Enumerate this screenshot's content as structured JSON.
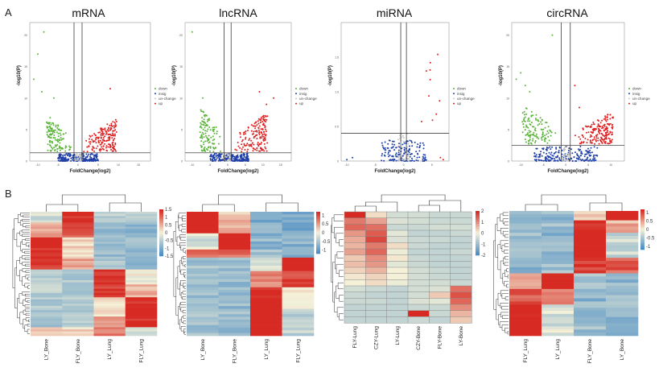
{
  "panel_labels": {
    "a": "A",
    "b": "B"
  },
  "colors": {
    "down": "#5bb43a",
    "insig": "#1f3fa8",
    "un_change": "#c9c9c9",
    "up": "#e02020",
    "hm_low": "#4a8cc4",
    "hm_mid": "#f4f1d8",
    "hm_high": "#d62a22"
  },
  "chart_data": [
    {
      "type": "scatter",
      "title": "mRNA",
      "xlabel": "FoldChange(log2)",
      "ylabel": "-log10(P)",
      "xticks": [
        "-10",
        "-5",
        "0",
        "5",
        "10",
        "15"
      ],
      "yticks": [
        "0",
        "5",
        "10",
        "15",
        "20"
      ],
      "xlim": [
        -12,
        18
      ],
      "ylim": [
        0,
        22
      ],
      "threshold_x": [
        -1,
        1
      ],
      "threshold_y": 1.3,
      "legend": [
        "down",
        "insig",
        "un-change",
        "up"
      ],
      "point_groups": [
        {
          "name": "down",
          "count": 130,
          "x": [
            -8,
            -1.2
          ],
          "y": [
            1.5,
            7.5
          ]
        },
        {
          "name": "up",
          "count": 170,
          "x": [
            1.2,
            10
          ],
          "y": [
            1.5,
            7
          ]
        },
        {
          "name": "insig",
          "count": 240,
          "x": [
            -5,
            5
          ],
          "y": [
            0,
            1.2
          ]
        },
        {
          "name": "un-change",
          "count": 30,
          "x": [
            -1,
            1
          ],
          "y": [
            0,
            1.3
          ]
        }
      ],
      "outliers": [
        [
          -8.5,
          20.5
        ],
        [
          -10,
          17
        ],
        [
          -11,
          13
        ],
        [
          -9,
          11
        ],
        [
          8,
          11.5
        ],
        [
          -6,
          10
        ]
      ]
    },
    {
      "type": "scatter",
      "title": "lncRNA",
      "xlabel": "FoldChange(log2)",
      "ylabel": "-log10(P)",
      "xticks": [
        "-10",
        "-5",
        "0",
        "5",
        "10",
        "15"
      ],
      "yticks": [
        "0",
        "5",
        "10",
        "15",
        "20"
      ],
      "xlim": [
        -12,
        18
      ],
      "ylim": [
        0,
        22
      ],
      "threshold_x": [
        -1,
        1
      ],
      "threshold_y": 1.3,
      "legend": [
        "down",
        "insig",
        "un-change",
        "up"
      ],
      "point_groups": [
        {
          "name": "down",
          "count": 110,
          "x": [
            -8,
            -1.5
          ],
          "y": [
            1.5,
            9
          ]
        },
        {
          "name": "up",
          "count": 160,
          "x": [
            1.5,
            12
          ],
          "y": [
            1.5,
            8
          ]
        },
        {
          "name": "insig",
          "count": 220,
          "x": [
            -5,
            6
          ],
          "y": [
            0,
            1.2
          ]
        },
        {
          "name": "un-change",
          "count": 25,
          "x": [
            -1,
            1
          ],
          "y": [
            0,
            1.3
          ]
        }
      ],
      "outliers": [
        [
          -10,
          20.5
        ],
        [
          9,
          11
        ],
        [
          11,
          9
        ],
        [
          13,
          10
        ],
        [
          -7,
          10
        ]
      ]
    },
    {
      "type": "scatter",
      "title": "miRNA",
      "xlabel": "FoldChange(log2)",
      "ylabel": "-log10(P)",
      "xticks": [
        "-10",
        "-5",
        "0",
        "5"
      ],
      "yticks": [
        "0",
        "0.5",
        "1.0",
        "1.5"
      ],
      "xlim": [
        -11,
        8
      ],
      "ylim": [
        0,
        2
      ],
      "threshold_x": [
        -0.5,
        0.5
      ],
      "threshold_y": 0.4,
      "legend": [
        "down",
        "insig",
        "un-change",
        "up"
      ],
      "point_groups": [
        {
          "name": "insig",
          "count": 150,
          "x": [
            -4,
            4
          ],
          "y": [
            0,
            0.3
          ]
        },
        {
          "name": "un-change",
          "count": 40,
          "x": [
            -1,
            1
          ],
          "y": [
            0,
            0.4
          ]
        },
        {
          "name": "up",
          "count": 10,
          "x": [
            2,
            7
          ],
          "y": [
            0.45,
            1.9
          ]
        }
      ],
      "outliers": [
        [
          -9,
          0.05
        ],
        [
          -10,
          0.02
        ],
        [
          7,
          0.02
        ],
        [
          6.5,
          0.05
        ]
      ]
    },
    {
      "type": "scatter",
      "title": "circRNA",
      "xlabel": "FoldChange(log2)",
      "ylabel": "-log10(P)",
      "xticks": [
        "-10",
        "-5",
        "0",
        "5",
        "10"
      ],
      "yticks": [
        "0",
        "5",
        "10",
        "15",
        "20"
      ],
      "xlim": [
        -12,
        13
      ],
      "ylim": [
        0,
        22
      ],
      "threshold_x": [
        -1,
        1
      ],
      "threshold_y": 2.5,
      "legend": [
        "down",
        "insig",
        "un-change",
        "up"
      ],
      "point_groups": [
        {
          "name": "down",
          "count": 120,
          "x": [
            -10,
            -1.5
          ],
          "y": [
            2.7,
            9
          ]
        },
        {
          "name": "up",
          "count": 180,
          "x": [
            1.5,
            11
          ],
          "y": [
            2.7,
            8
          ]
        },
        {
          "name": "insig",
          "count": 200,
          "x": [
            -7,
            7
          ],
          "y": [
            0,
            2.3
          ]
        },
        {
          "name": "un-change",
          "count": 30,
          "x": [
            -1,
            1
          ],
          "y": [
            0,
            2.5
          ]
        }
      ],
      "outliers": [
        [
          -10,
          14
        ],
        [
          -11,
          13
        ],
        [
          -9,
          12
        ],
        [
          -8,
          11
        ],
        [
          -3,
          20
        ],
        [
          2,
          12
        ],
        [
          3,
          8.5
        ]
      ]
    },
    {
      "type": "heatmap",
      "columns": [
        "LY_Bone",
        "FLY_Bone",
        "LY_Lung",
        "FLY_Lung"
      ],
      "colorbar_ticks": [
        "1.5",
        "1",
        "0.5",
        "0",
        "-0.5",
        "-1",
        "-1.5"
      ],
      "color_range": [
        -1.5,
        1.5
      ],
      "grid": false,
      "row_profiles": [
        {
          "n": 5,
          "values": [
            -0.3,
            1.5,
            -0.5,
            -0.5
          ]
        },
        {
          "n": 7,
          "values": [
            0.5,
            1.2,
            -0.8,
            -0.9
          ]
        },
        {
          "n": 10,
          "values": [
            1.5,
            0.2,
            -0.8,
            -0.8
          ]
        },
        {
          "n": 5,
          "values": [
            1.3,
            0.6,
            -0.6,
            -1.0
          ]
        },
        {
          "n": 7,
          "values": [
            -0.6,
            -0.6,
            1.5,
            0.0
          ]
        },
        {
          "n": 6,
          "values": [
            -0.5,
            -0.7,
            1.4,
            0.5
          ]
        },
        {
          "n": 9,
          "values": [
            -0.6,
            -0.6,
            0.2,
            1.5
          ]
        },
        {
          "n": 5,
          "values": [
            -0.7,
            -0.6,
            0.6,
            1.5
          ]
        },
        {
          "n": 4,
          "values": [
            0.4,
            0.2,
            0.9,
            -0.4
          ]
        }
      ]
    },
    {
      "type": "heatmap",
      "columns": [
        "LY_Bone",
        "FLY_Bone",
        "LY_Lung",
        "FLY_Lung"
      ],
      "colorbar_ticks": [
        "1",
        "0.5",
        "0",
        "-0.5",
        "-1"
      ],
      "color_range": [
        -1.2,
        1.2
      ],
      "grid": false,
      "row_profiles": [
        {
          "n": 8,
          "values": [
            1.4,
            0.3,
            -0.8,
            -0.9
          ]
        },
        {
          "n": 6,
          "values": [
            -0.2,
            1.4,
            -0.7,
            -0.8
          ]
        },
        {
          "n": 3,
          "values": [
            0.7,
            0.8,
            -0.5,
            -0.7
          ]
        },
        {
          "n": 5,
          "values": [
            -0.6,
            -0.6,
            -0.2,
            1.4
          ]
        },
        {
          "n": 6,
          "values": [
            -0.6,
            -0.6,
            0.6,
            1.1
          ]
        },
        {
          "n": 8,
          "values": [
            -0.6,
            -0.7,
            1.3,
            0.1
          ]
        },
        {
          "n": 10,
          "values": [
            -0.6,
            -0.6,
            1.4,
            -0.4
          ]
        }
      ]
    },
    {
      "type": "heatmap",
      "columns": [
        "FLY-Lung",
        "CZY-Lung",
        "LY-Lung",
        "CZY-Bone",
        "FLY-Bone",
        "LY-Bone"
      ],
      "colorbar_ticks": [
        "2",
        "1",
        "0",
        "-1",
        "-2"
      ],
      "color_range": [
        -2,
        2
      ],
      "grid": true,
      "rows": [
        [
          2.0,
          0.2,
          -0.4,
          -0.4,
          -0.5,
          -0.5
        ],
        [
          1.2,
          0.8,
          -0.3,
          -0.4,
          -0.5,
          -0.5
        ],
        [
          1.4,
          1.3,
          -0.5,
          -0.5,
          -0.4,
          -0.4
        ],
        [
          0.9,
          1.5,
          -0.2,
          -0.6,
          -0.6,
          -0.5
        ],
        [
          0.7,
          1.7,
          -0.3,
          -0.5,
          -0.5,
          -0.6
        ],
        [
          0.6,
          1.2,
          0.2,
          -0.5,
          -0.6,
          -0.6
        ],
        [
          0.8,
          1.4,
          -0.1,
          -0.6,
          -0.6,
          -0.5
        ],
        [
          0.4,
          1.0,
          0.1,
          -0.5,
          -0.6,
          -0.6
        ],
        [
          0.5,
          0.9,
          -0.2,
          -0.5,
          -0.6,
          -0.6
        ],
        [
          0.3,
          0.6,
          0.0,
          -0.4,
          -0.5,
          -0.6
        ],
        [
          0.1,
          0.3,
          0.0,
          -0.4,
          -0.5,
          -0.6
        ],
        [
          0.0,
          0.2,
          -0.1,
          -0.4,
          -0.4,
          -0.5
        ],
        [
          -0.4,
          -0.5,
          -0.6,
          -0.4,
          -0.3,
          1.3
        ],
        [
          -0.5,
          -0.6,
          -0.6,
          -0.4,
          0.4,
          1.6
        ],
        [
          -0.5,
          -0.5,
          -0.6,
          -0.3,
          -0.2,
          1.4
        ],
        [
          -0.6,
          -0.6,
          -0.6,
          -0.5,
          -0.5,
          1.0
        ],
        [
          -0.6,
          -0.6,
          -0.6,
          2.0,
          -0.5,
          0.6
        ],
        [
          -0.6,
          -0.6,
          -0.6,
          -0.5,
          -0.6,
          0.4
        ]
      ]
    },
    {
      "type": "heatmap",
      "columns": [
        "FLY_Lung",
        "LY_Lung",
        "FLY_Bone",
        "LY_Bone"
      ],
      "colorbar_ticks": [
        "1",
        "0.5",
        "0",
        "-0.5",
        "-1"
      ],
      "color_range": [
        -1.2,
        1.2
      ],
      "grid": false,
      "row_profiles": [
        {
          "n": 3,
          "values": [
            -0.7,
            -0.7,
            0.2,
            1.5
          ]
        },
        {
          "n": 4,
          "values": [
            -0.6,
            -0.6,
            1.3,
            0.4
          ]
        },
        {
          "n": 8,
          "values": [
            -0.6,
            -0.7,
            1.4,
            -0.3
          ]
        },
        {
          "n": 5,
          "values": [
            -0.7,
            -0.6,
            1.1,
            0.9
          ]
        },
        {
          "n": 5,
          "values": [
            0.4,
            1.3,
            -0.6,
            -0.7
          ]
        },
        {
          "n": 5,
          "values": [
            0.9,
            0.6,
            -0.7,
            -0.6
          ]
        },
        {
          "n": 10,
          "values": [
            1.4,
            -0.2,
            -0.6,
            -0.7
          ]
        }
      ]
    }
  ]
}
